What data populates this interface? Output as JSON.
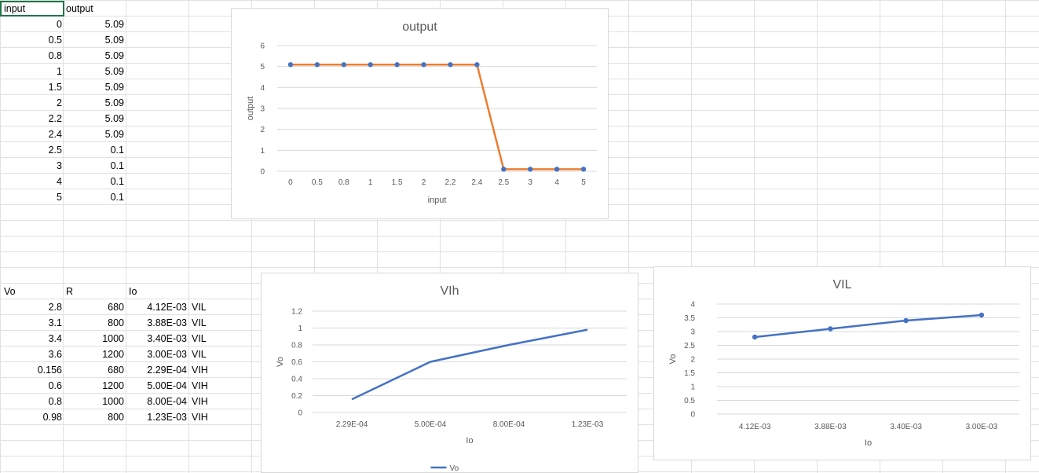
{
  "sheet": {
    "top_headers": {
      "input": "input",
      "output": "output"
    },
    "top_rows": [
      {
        "input": "0",
        "output": "5.09"
      },
      {
        "input": "0.5",
        "output": "5.09"
      },
      {
        "input": "0.8",
        "output": "5.09"
      },
      {
        "input": "1",
        "output": "5.09"
      },
      {
        "input": "1.5",
        "output": "5.09"
      },
      {
        "input": "2",
        "output": "5.09"
      },
      {
        "input": "2.2",
        "output": "5.09"
      },
      {
        "input": "2.4",
        "output": "5.09"
      },
      {
        "input": "2.5",
        "output": "0.1"
      },
      {
        "input": "3",
        "output": "0.1"
      },
      {
        "input": "4",
        "output": "0.1"
      },
      {
        "input": "5",
        "output": "0.1"
      }
    ],
    "bottom_headers": {
      "vo": "Vo",
      "r": "R",
      "io": "Io"
    },
    "bottom_rows": [
      {
        "vo": "2.8",
        "r": "680",
        "io": "4.12E-03",
        "tag": "VIL"
      },
      {
        "vo": "3.1",
        "r": "800",
        "io": "3.88E-03",
        "tag": "VIL"
      },
      {
        "vo": "3.4",
        "r": "1000",
        "io": "3.40E-03",
        "tag": "VIL"
      },
      {
        "vo": "3.6",
        "r": "1200",
        "io": "3.00E-03",
        "tag": "VIL"
      },
      {
        "vo": "0.156",
        "r": "680",
        "io": "2.29E-04",
        "tag": "VIH"
      },
      {
        "vo": "0.6",
        "r": "1200",
        "io": "5.00E-04",
        "tag": "VIH"
      },
      {
        "vo": "0.8",
        "r": "1000",
        "io": "8.00E-04",
        "tag": "VIH"
      },
      {
        "vo": "0.98",
        "r": "800",
        "io": "1.23E-03",
        "tag": "VIH"
      }
    ]
  },
  "colors": {
    "orange": "#ed7d31",
    "blue": "#4472c4",
    "marker": "#4472c4"
  },
  "chart_data": [
    {
      "type": "line",
      "title": "output",
      "xlabel": "input",
      "ylabel": "output",
      "categories": [
        "0",
        "0.5",
        "0.8",
        "1",
        "1.5",
        "2",
        "2.2",
        "2.4",
        "2.5",
        "3",
        "4",
        "5"
      ],
      "series": [
        {
          "values": [
            5.09,
            5.09,
            5.09,
            5.09,
            5.09,
            5.09,
            5.09,
            5.09,
            0.1,
            0.1,
            0.1,
            0.1
          ]
        }
      ],
      "ylim": [
        0,
        6
      ],
      "yticks": [
        "0",
        "1",
        "2",
        "3",
        "4",
        "5",
        "6"
      ],
      "grid": true,
      "markers": true
    },
    {
      "type": "line",
      "title": "VIh",
      "xlabel": "Io",
      "ylabel": "Vo",
      "categories": [
        "2.29E-04",
        "5.00E-04",
        "8.00E-04",
        "1.23E-03"
      ],
      "series": [
        {
          "name": "Vo",
          "values": [
            0.156,
            0.6,
            0.8,
            0.98
          ]
        }
      ],
      "ylim": [
        0,
        1.2
      ],
      "yticks": [
        "0",
        "0.2",
        "0.4",
        "0.6",
        "0.8",
        "1",
        "1.2"
      ],
      "grid": true,
      "legend": "bottom"
    },
    {
      "type": "line",
      "title": "VIL",
      "xlabel": "Io",
      "ylabel": "Vo",
      "categories": [
        "4.12E-03",
        "3.88E-03",
        "3.40E-03",
        "3.00E-03"
      ],
      "series": [
        {
          "values": [
            2.8,
            3.1,
            3.4,
            3.6
          ]
        }
      ],
      "ylim": [
        0,
        4
      ],
      "yticks": [
        "0",
        "0.5",
        "1",
        "1.5",
        "2",
        "2.5",
        "3",
        "3.5",
        "4"
      ],
      "grid": true,
      "markers": true
    }
  ]
}
